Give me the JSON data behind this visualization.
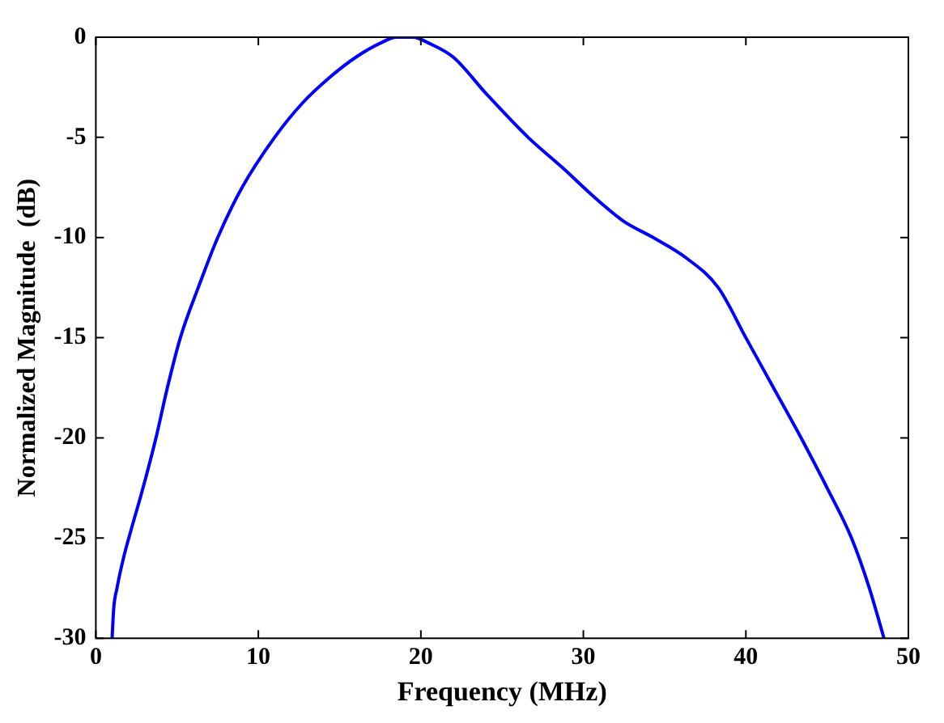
{
  "chart_data": {
    "type": "line",
    "xlabel": "Frequency (MHz)",
    "ylabel": "Normalized Magnitude  (dB)",
    "xlim": [
      0,
      50
    ],
    "xticks": [
      0,
      10,
      20,
      30,
      40,
      50
    ],
    "ylim": [
      -30,
      0
    ],
    "yticks": [
      -30,
      -25,
      -20,
      -15,
      -10,
      -5,
      0
    ],
    "grid": false,
    "legend": false,
    "marker": "none",
    "line_style": "solid",
    "series": [
      {
        "color": "#0000ff",
        "x": [
          1,
          1.1,
          1.3,
          1.7,
          2.2,
          2.8,
          3.7,
          4.4,
          5.2,
          6.3,
          7.5,
          9,
          11,
          12.7,
          14.4,
          16,
          17.5,
          18.5,
          19.5,
          20.5,
          22,
          24,
          26.6,
          28.7,
          30.7,
          32.5,
          34.3,
          36.3,
          38.3,
          40,
          41.7,
          43.4,
          45,
          46.5,
          47.6,
          48.5
        ],
        "values": [
          -30,
          -28.5,
          -27.5,
          -26,
          -24.5,
          -22.8,
          -20,
          -17.5,
          -15,
          -12.5,
          -10,
          -7.5,
          -5,
          -3.3,
          -2,
          -1,
          -0.3,
          0,
          0,
          -0.3,
          -1,
          -2.8,
          -5,
          -6.5,
          -8,
          -9.2,
          -10,
          -11,
          -12.5,
          -15,
          -17.5,
          -20,
          -22.5,
          -25,
          -27.5,
          -30
        ]
      }
    ]
  }
}
